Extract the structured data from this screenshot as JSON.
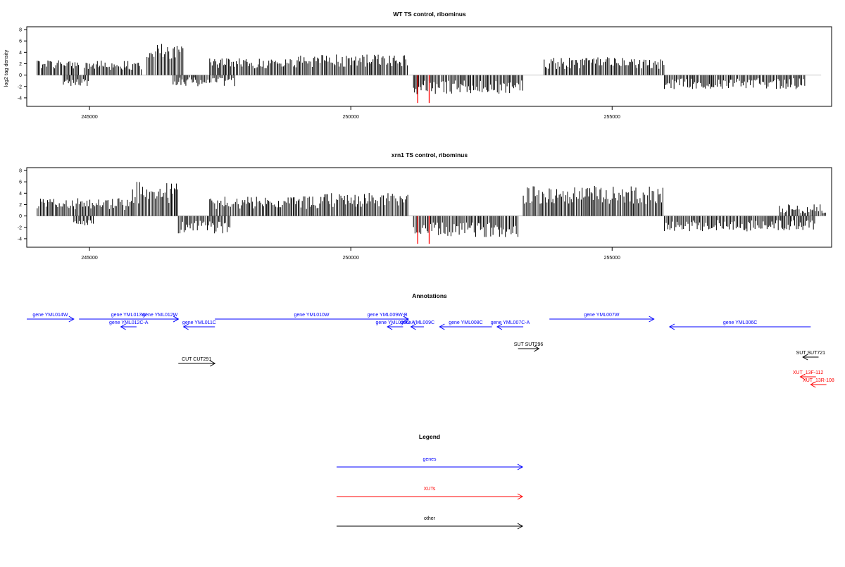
{
  "chart_data": [
    {
      "type": "bar",
      "title": "WT TS control, ribominus",
      "ylabel": "log2 tag density",
      "xlabel": "",
      "xlim": [
        243800,
        259200
      ],
      "ylim": [
        -5,
        8
      ],
      "yticks": [
        -4,
        -2,
        0,
        2,
        4,
        6,
        8
      ],
      "xticks": [
        245000,
        250000,
        255000
      ],
      "grid": false,
      "series": [
        {
          "strand": "plus",
          "color": "#000000",
          "segments": [
            {
              "start": 244000,
              "end": 244800,
              "base": 1.7,
              "amp": 1.0
            },
            {
              "start": 244900,
              "end": 246000,
              "base": 1.5,
              "amp": 1.0
            },
            {
              "start": 246100,
              "end": 246800,
              "base": 3.8,
              "amp": 1.8
            },
            {
              "start": 247300,
              "end": 249000,
              "base": 1.8,
              "amp": 1.1
            },
            {
              "start": 249000,
              "end": 251100,
              "base": 2.2,
              "amp": 1.4
            },
            {
              "start": 253700,
              "end": 256000,
              "base": 1.8,
              "amp": 1.3
            }
          ]
        },
        {
          "strand": "minus",
          "color": "#000000",
          "segments": [
            {
              "start": 244500,
              "end": 245000,
              "base": -1.5,
              "amp": 0.8
            },
            {
              "start": 246600,
              "end": 247800,
              "base": -1.4,
              "amp": 1.0
            },
            {
              "start": 251200,
              "end": 253300,
              "base": -2.5,
              "amp": 1.5
            },
            {
              "start": 256000,
              "end": 258700,
              "base": -1.8,
              "amp": 1.2
            }
          ]
        },
        {
          "strand": "minus",
          "color": "#ff0000",
          "points": [
            {
              "x": 251280,
              "y": -4.9
            },
            {
              "x": 251500,
              "y": -4.9
            }
          ]
        }
      ]
    },
    {
      "type": "bar",
      "title": "xrn1 TS control, ribominus",
      "ylabel": "",
      "xlabel": "",
      "xlim": [
        243800,
        259200
      ],
      "ylim": [
        -5,
        8
      ],
      "yticks": [
        -4,
        -2,
        0,
        2,
        4,
        6,
        8
      ],
      "xticks": [
        245000,
        250000,
        255000
      ],
      "grid": false,
      "series": [
        {
          "strand": "plus",
          "color": "#000000",
          "segments": [
            {
              "start": 244000,
              "end": 245800,
              "base": 1.8,
              "amp": 1.3
            },
            {
              "start": 245800,
              "end": 246700,
              "base": 3.5,
              "amp": 2.5
            },
            {
              "start": 247300,
              "end": 249500,
              "base": 2.0,
              "amp": 1.4
            },
            {
              "start": 249500,
              "end": 251100,
              "base": 2.4,
              "amp": 1.6
            },
            {
              "start": 253300,
              "end": 256000,
              "base": 3.2,
              "amp": 2.0
            },
            {
              "start": 258200,
              "end": 259100,
              "base": 1.0,
              "amp": 1.0
            }
          ]
        },
        {
          "strand": "minus",
          "color": "#000000",
          "segments": [
            {
              "start": 244700,
              "end": 245100,
              "base": -1.4,
              "amp": 0.7
            },
            {
              "start": 246700,
              "end": 247700,
              "base": -2.3,
              "amp": 1.4
            },
            {
              "start": 251200,
              "end": 253200,
              "base": -2.8,
              "amp": 1.6
            },
            {
              "start": 256000,
              "end": 258900,
              "base": -2.0,
              "amp": 1.3
            }
          ]
        },
        {
          "strand": "minus",
          "color": "#ff0000",
          "points": [
            {
              "x": 251280,
              "y": -4.9
            },
            {
              "x": 251500,
              "y": -4.9
            }
          ]
        }
      ]
    }
  ],
  "annotations": {
    "title": "Annotations",
    "xlim": [
      243800,
      259200
    ],
    "features": [
      {
        "label": "gene YML014W",
        "start": 243800,
        "end": 244700,
        "strand": "+",
        "type": "gene",
        "row": 0
      },
      {
        "label": "gene YML013W",
        "start": 244800,
        "end": 246700,
        "strand": "+",
        "type": "gene",
        "row": 0
      },
      {
        "label": "gene YML012C-A",
        "start": 245600,
        "end": 245900,
        "strand": "-",
        "type": "gene",
        "row": 1
      },
      {
        "label": "gene YML012W",
        "start": 246000,
        "end": 246700,
        "strand": "+",
        "type": "gene",
        "row": 0
      },
      {
        "label": "gene YML011C",
        "start": 246800,
        "end": 247400,
        "strand": "-",
        "type": "gene",
        "row": 1
      },
      {
        "label": "gene YML010W",
        "start": 247400,
        "end": 251100,
        "strand": "+",
        "type": "gene",
        "row": 0
      },
      {
        "label": "gene YML009W-B",
        "start": 250300,
        "end": 251100,
        "strand": "+",
        "type": "gene",
        "row": 0
      },
      {
        "label": "gene YML009C-A",
        "start": 250700,
        "end": 251000,
        "strand": "-",
        "type": "gene",
        "row": 1
      },
      {
        "label": "gene YML009C",
        "start": 251150,
        "end": 251400,
        "strand": "-",
        "type": "gene",
        "row": 1
      },
      {
        "label": "gene YML008C",
        "start": 251700,
        "end": 252700,
        "strand": "-",
        "type": "gene",
        "row": 1
      },
      {
        "label": "gene YML007C-A",
        "start": 252800,
        "end": 253300,
        "strand": "-",
        "type": "gene",
        "row": 1
      },
      {
        "label": "gene YML007W",
        "start": 253800,
        "end": 255800,
        "strand": "+",
        "type": "gene",
        "row": 0
      },
      {
        "label": "gene YML006C",
        "start": 256100,
        "end": 258800,
        "strand": "-",
        "type": "gene",
        "row": 1
      },
      {
        "label": "SUT SUT296",
        "start": 253200,
        "end": 253600,
        "strand": "+",
        "type": "other",
        "row": 3
      },
      {
        "label": "CUT CUT291",
        "start": 246700,
        "end": 247400,
        "strand": "+",
        "type": "other",
        "row": 4
      },
      {
        "label": "SUT SUT721",
        "start": 258650,
        "end": 258950,
        "strand": "-",
        "type": "other",
        "row": 5
      },
      {
        "label": "XUT_13F-112",
        "start": 258600,
        "end": 258900,
        "strand": "-",
        "type": "xut",
        "row": 6
      },
      {
        "label": "XUT_13R-108",
        "start": 258800,
        "end": 259100,
        "strand": "-",
        "type": "xut",
        "row": 7
      }
    ]
  },
  "legend": {
    "title": "Legend",
    "items": [
      {
        "label": "genes",
        "color": "#0000ff"
      },
      {
        "label": "XUTs",
        "color": "#ff0000"
      },
      {
        "label": "other",
        "color": "#000000"
      }
    ]
  },
  "colors": {
    "gene": "#0000ff",
    "xut": "#ff0000",
    "other": "#000000",
    "axis": "#000000"
  }
}
